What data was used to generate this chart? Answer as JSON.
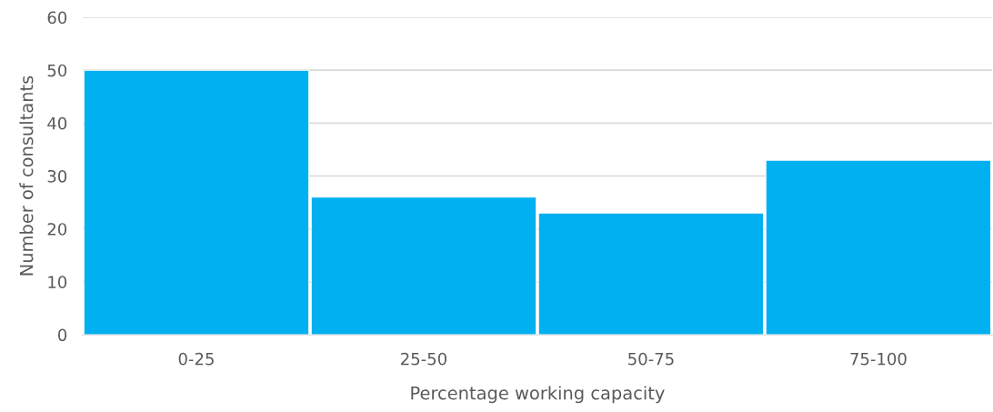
{
  "chart_data": {
    "type": "bar",
    "xlabel": "Percentage working capacity",
    "ylabel": "Number of consultants",
    "categories": [
      "0-25",
      "25-50",
      "50-75",
      "75-100"
    ],
    "values": [
      50,
      26,
      23,
      33
    ],
    "color": "#00b0f0",
    "ylim": [
      0,
      60
    ],
    "yticks": [
      0,
      10,
      20,
      30,
      40,
      50,
      60
    ],
    "grid": "y"
  }
}
